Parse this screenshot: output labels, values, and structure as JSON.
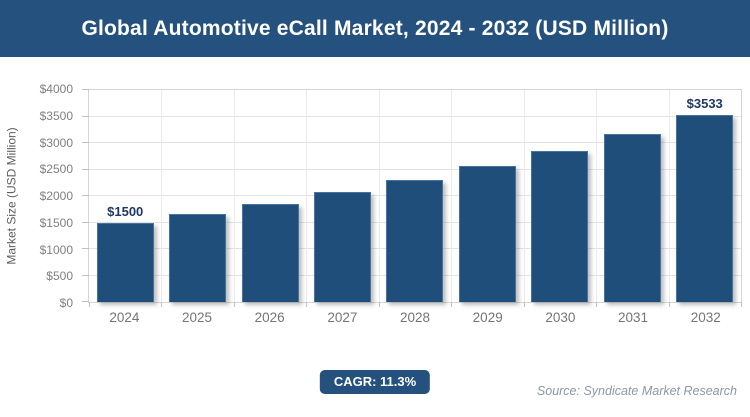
{
  "header": {
    "title": "Global Automotive eCall Market, 2024 - 2032 (USD Million)"
  },
  "footer": {
    "cagr_label": "CAGR: 11.3%",
    "source": "Source: Syndicate Market Research"
  },
  "colors": {
    "navy": "#24517e",
    "bar_fill": "#1f4e7b",
    "bar_border": "#46749f",
    "data_label_text": "#1f3864",
    "tick_text": "#7f7f7f",
    "grid": "#e3e3e3"
  },
  "chart_data": {
    "type": "bar",
    "title": "Global Automotive eCall Market, 2024 - 2032 (USD Million)",
    "categories": [
      "2024",
      "2025",
      "2026",
      "2027",
      "2028",
      "2029",
      "2030",
      "2031",
      "2032"
    ],
    "values": [
      1500,
      1670,
      1858,
      2068,
      2302,
      2562,
      2852,
      3174,
      3533
    ],
    "point_labels": [
      "$1500",
      "",
      "",
      "",
      "",
      "",
      "",
      "",
      "$3533"
    ],
    "xlabel": "",
    "ylabel": "Market Size (USD Million)",
    "ylim": [
      0,
      4000
    ],
    "ytick_step": 500,
    "ytick_labels": [
      "$0",
      "$500",
      "$1000",
      "$1500",
      "$2000",
      "$2500",
      "$3000",
      "$3500",
      "$4000"
    ],
    "grid": true,
    "legend": "none",
    "cagr": "11.3%"
  }
}
